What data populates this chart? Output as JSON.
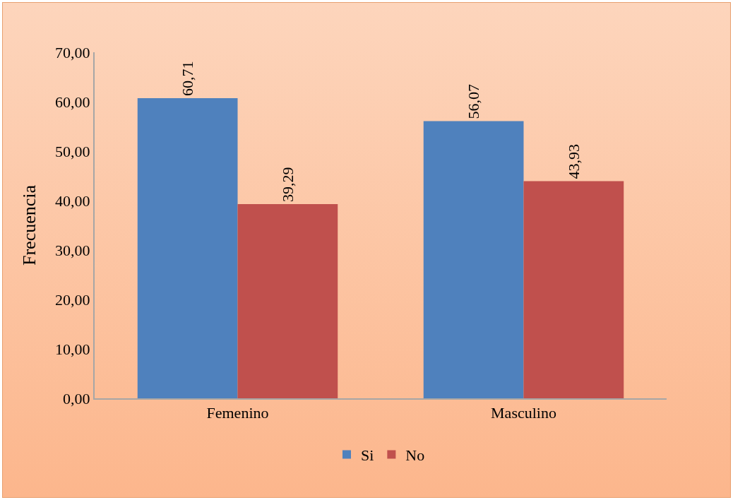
{
  "chart_data": {
    "type": "bar",
    "ylabel": "Frecuencia",
    "categories": [
      "Femenino",
      "Masculino"
    ],
    "series": [
      {
        "name": "Si",
        "color": "#4f81bd",
        "values": [
          60.71,
          56.07
        ],
        "value_labels": [
          "60,71",
          "56,07"
        ]
      },
      {
        "name": "No",
        "color": "#c0504d",
        "values": [
          39.29,
          43.93
        ],
        "value_labels": [
          "39,29",
          "43,93"
        ]
      }
    ],
    "ylim": [
      0,
      70
    ],
    "yticks": [
      {
        "value": 0,
        "label": "0,00"
      },
      {
        "value": 10,
        "label": "10,00"
      },
      {
        "value": 20,
        "label": "20,00"
      },
      {
        "value": 30,
        "label": "30,00"
      },
      {
        "value": 40,
        "label": "40,00"
      },
      {
        "value": 50,
        "label": "50,00"
      },
      {
        "value": 60,
        "label": "60,00"
      },
      {
        "value": 70,
        "label": "70,00"
      }
    ],
    "legend": "bottom"
  }
}
